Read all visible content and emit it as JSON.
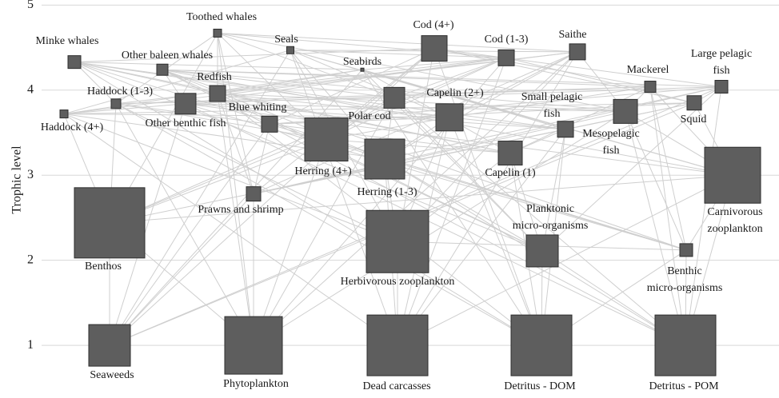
{
  "axis": {
    "label": "Trophic level",
    "ylim": [
      0.4,
      5.05
    ],
    "yticks": [
      1,
      2,
      3,
      4,
      5
    ]
  },
  "nodes": [
    {
      "label": [
        "Toothed whales"
      ],
      "level": 4.67
    },
    {
      "label": [
        "Seals"
      ],
      "level": 4.47
    },
    {
      "label": [
        "Minke whales"
      ],
      "level": 4.33
    },
    {
      "label": [
        "Other baleen whales"
      ],
      "level": 4.24
    },
    {
      "label": [
        "Cod (4+)"
      ],
      "level": 4.49
    },
    {
      "label": [
        "Cod (1-3)"
      ],
      "level": 4.38
    },
    {
      "label": [
        "Saithe"
      ],
      "level": 4.45
    },
    {
      "label": [
        "Seabirds"
      ],
      "level": 4.24
    },
    {
      "label": [
        "Mackerel"
      ],
      "level": 4.04
    },
    {
      "label": [
        "Large pelagic",
        "fish"
      ],
      "level": 4.04
    },
    {
      "label": [
        "Haddock (1-3)"
      ],
      "level": 3.84
    },
    {
      "label": [
        "Haddock (4+)"
      ],
      "level": 3.72
    },
    {
      "label": [
        "Redfish"
      ],
      "level": 3.96
    },
    {
      "label": [
        "Other benthic  fish"
      ],
      "level": 3.84
    },
    {
      "label": [
        "Blue whiting"
      ],
      "level": 3.6
    },
    {
      "label": [
        "Polar cod"
      ],
      "level": 3.91
    },
    {
      "label": [
        "Capelin (2+)"
      ],
      "level": 3.68
    },
    {
      "label": [
        "Small pelagic",
        "fish"
      ],
      "level": 3.54
    },
    {
      "label": [
        "Mesopelagic",
        "fish"
      ],
      "level": 3.75
    },
    {
      "label": [
        "Squid"
      ],
      "level": 3.85
    },
    {
      "label": [
        "Herring (4+)"
      ],
      "level": 3.42
    },
    {
      "label": [
        "Herring (1-3)"
      ],
      "level": 3.19
    },
    {
      "label": [
        "Capelin (1)"
      ],
      "level": 3.26
    },
    {
      "label": [
        "Carnivorous",
        "zooplankton"
      ],
      "level": 3.0
    },
    {
      "label": [
        "Prawns and shrimp"
      ],
      "level": 2.78
    },
    {
      "label": [
        "Benthos"
      ],
      "level": 2.44
    },
    {
      "label": [
        "Herbivorous  zooplankton"
      ],
      "level": 2.22
    },
    {
      "label": [
        "Planktonic",
        "micro-organisms"
      ],
      "level": 2.11
    },
    {
      "label": [
        "Benthic",
        "micro-organisms"
      ],
      "level": 2.12
    },
    {
      "label": [
        "Seaweeds"
      ],
      "level": 1.0
    },
    {
      "label": [
        "Phytoplankton"
      ],
      "level": 1.0
    },
    {
      "label": [
        "Dead carcasses"
      ],
      "level": 1.0
    },
    {
      "label": [
        "Detritus  - DOM"
      ],
      "level": 1.0
    },
    {
      "label": [
        "Detritus  - POM"
      ],
      "level": 1.0
    }
  ]
}
